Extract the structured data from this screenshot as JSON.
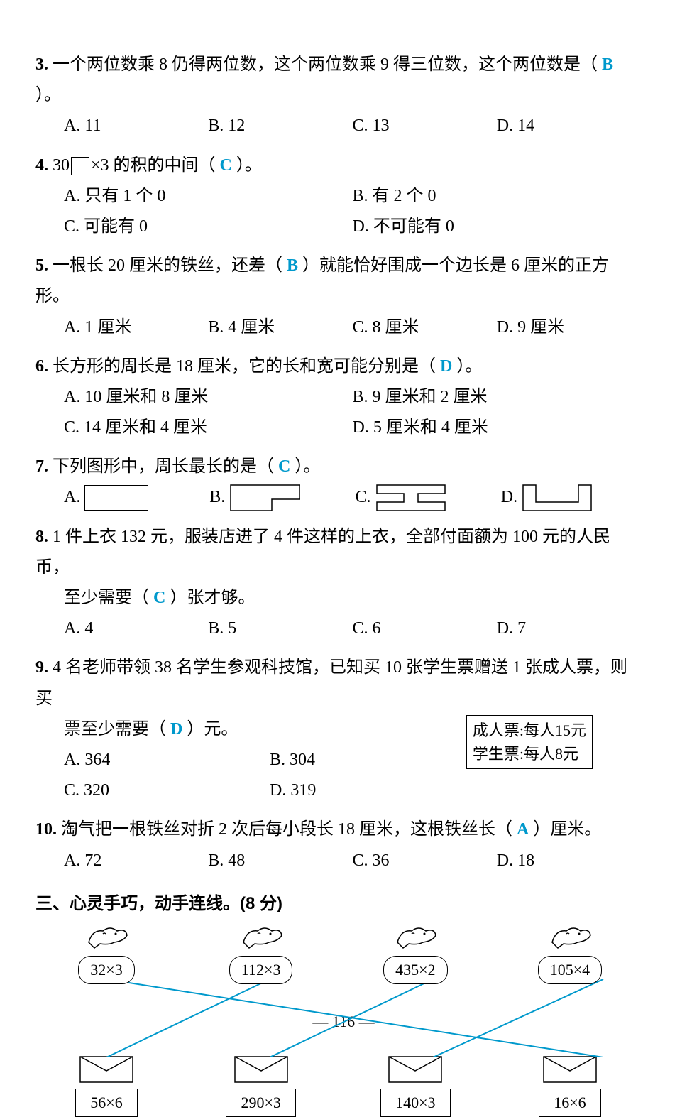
{
  "questions": {
    "q3": {
      "num": "3.",
      "text_before": " 一个两位数乘 8 仍得两位数，这个两位数乘 9 得三位数，这个两位数是（ ",
      "answer": "B",
      "text_after": " ）。",
      "optA": "A. 11",
      "optB": "B. 12",
      "optC": "C. 13",
      "optD": "D. 14"
    },
    "q4": {
      "num": "4.",
      "text_before": " 30",
      "text_mid": "×3 的积的中间（ ",
      "answer": "C",
      "text_after": " ）。",
      "optA": "A. 只有 1 个 0",
      "optB": "B. 有 2 个 0",
      "optC": "C. 可能有 0",
      "optD": "D. 不可能有 0"
    },
    "q5": {
      "num": "5.",
      "text_before": " 一根长 20 厘米的铁丝，还差（ ",
      "answer": "B",
      "text_after": " ）就能恰好围成一个边长是 6 厘米的正方形。",
      "optA": "A. 1 厘米",
      "optB": "B. 4 厘米",
      "optC": "C. 8 厘米",
      "optD": "D. 9 厘米"
    },
    "q6": {
      "num": "6.",
      "text_before": " 长方形的周长是 18 厘米，它的长和宽可能分别是（ ",
      "answer": "D",
      "text_after": " ）。",
      "optA": "A. 10 厘米和 8 厘米",
      "optB": "B. 9 厘米和 2 厘米",
      "optC": "C. 14 厘米和 4 厘米",
      "optD": "D. 5 厘米和 4 厘米"
    },
    "q7": {
      "num": "7.",
      "text_before": " 下列图形中，周长最长的是（ ",
      "answer": "C",
      "text_after": " ）。",
      "labA": "A.",
      "labB": "B.",
      "labC": "C.",
      "labD": "D."
    },
    "q8": {
      "num": "8.",
      "line1": " 1 件上衣 132 元，服装店进了 4 件这样的上衣，全部付面额为 100 元的人民币，",
      "line2_before": "至少需要（ ",
      "answer": "C",
      "line2_after": " ）张才够。",
      "optA": "A. 4",
      "optB": "B. 5",
      "optC": "C. 6",
      "optD": "D. 7"
    },
    "q9": {
      "num": "9.",
      "line1": " 4 名老师带领 38 名学生参观科技馆，已知买 10 张学生票赠送 1 张成人票，则买",
      "line2_before": "票至少需要（ ",
      "answer": "D",
      "line2_after": " ）元。",
      "optA": "A. 364",
      "optB": "B. 304",
      "optC": "C. 320",
      "optD": "D. 319",
      "priceAdult": "成人票:每人15元",
      "priceStudent": "学生票:每人8元"
    },
    "q10": {
      "num": "10.",
      "text_before": " 淘气把一根铁丝对折 2 次后每小段长 18 厘米，这根铁丝长（ ",
      "answer": "A",
      "text_after": " ）厘米。",
      "optA": "A. 72",
      "optB": "B. 48",
      "optC": "C. 36",
      "optD": "D. 18"
    }
  },
  "section3": {
    "title": "三、心灵手巧，动手连线。(8 分)",
    "birds": [
      "32×3",
      "112×3",
      "435×2",
      "105×4"
    ],
    "envelopes": [
      "56×6",
      "290×3",
      "140×3",
      "16×6"
    ],
    "connections": [
      [
        0,
        3
      ],
      [
        1,
        0
      ],
      [
        2,
        1
      ],
      [
        3,
        2
      ]
    ],
    "line_color": "#0099cc",
    "positions_x": [
      70,
      300,
      530,
      770
    ]
  },
  "pageNum": "— 116 —",
  "colors": {
    "answer": "#0099cc",
    "text": "#000000",
    "bg": "#ffffff"
  }
}
